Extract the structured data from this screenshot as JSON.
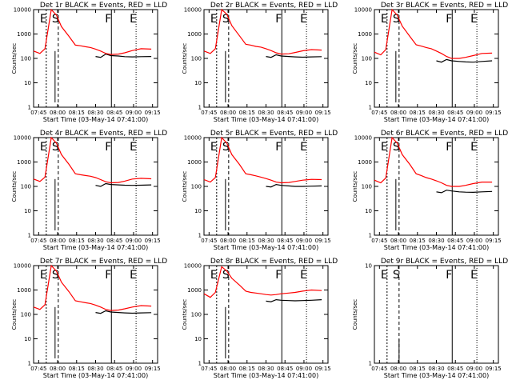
{
  "chart_data": [
    {
      "type": "line",
      "title": "Det 1r BLACK = Events, RED = LLD",
      "ylabel": "Counts/sec",
      "xlabel": "Start Time (03-May-14 07:41:00)",
      "x_ticks": [
        "07:45",
        "08:00",
        "08:15",
        "08:30",
        "08:45",
        "09:00",
        "09:15"
      ],
      "y_ticks": [
        "1",
        "10",
        "100",
        "1000",
        "10000"
      ],
      "yscale": "log",
      "ylim": [
        1,
        10000
      ],
      "markers": [
        "E",
        "S",
        "F",
        "E"
      ],
      "x": [
        0,
        5,
        9,
        14,
        18,
        22,
        28,
        33,
        37,
        41,
        45,
        49,
        53,
        57,
        61,
        67,
        72,
        78,
        85,
        93
      ],
      "series": [
        {
          "color": "#000000",
          "values": [
            null,
            null,
            null,
            null,
            null,
            null,
            null,
            null,
            null,
            null,
            null,
            120,
            110,
            150,
            130,
            125,
            118,
            115,
            118,
            120
          ]
        },
        {
          "color": "#ff0000",
          "values": [
            200,
            160,
            250,
            10000,
            6000,
            2000,
            800,
            350,
            330,
            300,
            280,
            240,
            200,
            160,
            145,
            150,
            170,
            210,
            250,
            240
          ]
        }
      ]
    },
    {
      "type": "line",
      "title": "Det 2r BLACK = Events, RED = LLD",
      "ylabel": "Counts/sec",
      "xlabel": "Start Time (03-May-14 07:41:00)",
      "x_ticks": [
        "07:45",
        "08:00",
        "08:15",
        "08:30",
        "08:45",
        "09:00",
        "09:15"
      ],
      "y_ticks": [
        "1",
        "10",
        "100",
        "1000",
        "10000"
      ],
      "yscale": "log",
      "ylim": [
        1,
        10000
      ],
      "markers": [
        "E",
        "S",
        "F",
        "E"
      ],
      "x": [
        0,
        5,
        9,
        14,
        18,
        22,
        28,
        33,
        37,
        41,
        45,
        49,
        53,
        57,
        61,
        67,
        72,
        78,
        85,
        93
      ],
      "series": [
        {
          "color": "#000000",
          "values": [
            null,
            null,
            null,
            null,
            null,
            null,
            null,
            null,
            null,
            null,
            null,
            120,
            110,
            140,
            125,
            120,
            115,
            112,
            115,
            118
          ]
        },
        {
          "color": "#ff0000",
          "values": [
            200,
            160,
            250,
            11000,
            6500,
            2200,
            850,
            380,
            350,
            310,
            290,
            250,
            210,
            170,
            150,
            155,
            175,
            205,
            230,
            220
          ]
        }
      ]
    },
    {
      "type": "line",
      "title": "Det 3r BLACK = Events, RED = LLD",
      "ylabel": "Counts/sec",
      "xlabel": "Start Time (03-May-14 07:41:00)",
      "x_ticks": [
        "07:45",
        "08:00",
        "08:15",
        "08:30",
        "08:45",
        "09:00",
        "09:15"
      ],
      "y_ticks": [
        "1",
        "10",
        "100",
        "1000",
        "10000"
      ],
      "yscale": "log",
      "ylim": [
        1,
        10000
      ],
      "markers": [
        "E",
        "S",
        "F",
        "E"
      ],
      "x": [
        0,
        5,
        9,
        14,
        18,
        22,
        28,
        33,
        37,
        41,
        45,
        49,
        53,
        57,
        61,
        67,
        72,
        78,
        85,
        93
      ],
      "series": [
        {
          "color": "#000000",
          "values": [
            null,
            null,
            null,
            null,
            null,
            null,
            null,
            null,
            null,
            null,
            null,
            80,
            70,
            90,
            80,
            75,
            72,
            70,
            75,
            80
          ]
        },
        {
          "color": "#ff0000",
          "values": [
            180,
            140,
            230,
            11000,
            6000,
            2100,
            800,
            360,
            320,
            280,
            250,
            200,
            160,
            120,
            100,
            100,
            110,
            130,
            160,
            165
          ]
        }
      ]
    },
    {
      "type": "line",
      "title": "Det 4r BLACK = Events, RED = LLD",
      "ylabel": "Counts/sec",
      "xlabel": "Start Time (03-May-14 07:41:00)",
      "x_ticks": [
        "07:45",
        "08:00",
        "08:15",
        "08:30",
        "08:45",
        "09:00",
        "09:15"
      ],
      "y_ticks": [
        "1",
        "10",
        "100",
        "1000",
        "10000"
      ],
      "yscale": "log",
      "ylim": [
        1,
        10000
      ],
      "markers": [
        "E",
        "S",
        "F",
        "E"
      ],
      "x": [
        0,
        5,
        9,
        14,
        18,
        22,
        28,
        33,
        37,
        41,
        45,
        49,
        53,
        57,
        61,
        67,
        72,
        78,
        85,
        93
      ],
      "series": [
        {
          "color": "#000000",
          "values": [
            null,
            null,
            null,
            null,
            null,
            null,
            null,
            null,
            null,
            null,
            null,
            110,
            100,
            130,
            120,
            115,
            112,
            110,
            112,
            115
          ]
        },
        {
          "color": "#ff0000",
          "values": [
            200,
            160,
            240,
            10500,
            6000,
            2000,
            800,
            330,
            300,
            280,
            260,
            230,
            190,
            155,
            140,
            145,
            165,
            200,
            215,
            205
          ]
        }
      ]
    },
    {
      "type": "line",
      "title": "Det 5r BLACK = Events, RED = LLD",
      "ylabel": "Counts/sec",
      "xlabel": "Start Time (03-May-14 07:41:00)",
      "x_ticks": [
        "07:45",
        "08:00",
        "08:15",
        "08:30",
        "08:45",
        "09:00",
        "09:15"
      ],
      "y_ticks": [
        "1",
        "10",
        "100",
        "1000",
        "10000"
      ],
      "yscale": "log",
      "ylim": [
        1,
        10000
      ],
      "markers": [
        "E",
        "S",
        "F",
        "E"
      ],
      "x": [
        0,
        5,
        9,
        14,
        18,
        22,
        28,
        33,
        37,
        41,
        45,
        49,
        53,
        57,
        61,
        67,
        72,
        78,
        85,
        93
      ],
      "series": [
        {
          "color": "#000000",
          "values": [
            null,
            null,
            null,
            null,
            null,
            null,
            null,
            null,
            null,
            null,
            null,
            100,
            95,
            120,
            110,
            105,
            100,
            100,
            102,
            105
          ]
        },
        {
          "color": "#ff0000",
          "values": [
            190,
            150,
            230,
            10500,
            6000,
            2000,
            800,
            330,
            300,
            270,
            240,
            210,
            180,
            150,
            140,
            145,
            160,
            180,
            195,
            190
          ]
        }
      ]
    },
    {
      "type": "line",
      "title": "Det 6r BLACK = Events, RED = LLD",
      "ylabel": "Counts/sec",
      "xlabel": "Start Time (03-May-14 07:41:00)",
      "x_ticks": [
        "07:45",
        "08:00",
        "08:15",
        "08:30",
        "08:45",
        "09:00",
        "09:15"
      ],
      "y_ticks": [
        "1",
        "10",
        "100",
        "1000",
        "10000"
      ],
      "yscale": "log",
      "ylim": [
        1,
        10000
      ],
      "markers": [
        "E",
        "S",
        "F",
        "E"
      ],
      "x": [
        0,
        5,
        9,
        14,
        18,
        22,
        28,
        33,
        37,
        41,
        45,
        49,
        53,
        57,
        61,
        67,
        72,
        78,
        85,
        93
      ],
      "series": [
        {
          "color": "#000000",
          "values": [
            null,
            null,
            null,
            null,
            null,
            null,
            null,
            null,
            null,
            null,
            null,
            60,
            55,
            70,
            65,
            60,
            58,
            57,
            60,
            62
          ]
        },
        {
          "color": "#ff0000",
          "values": [
            180,
            140,
            220,
            11000,
            6000,
            2000,
            800,
            330,
            280,
            230,
            200,
            170,
            140,
            110,
            100,
            100,
            110,
            130,
            150,
            150
          ]
        }
      ]
    },
    {
      "type": "line",
      "title": "Det 7r BLACK = Events, RED = LLD",
      "ylabel": "Counts/sec",
      "xlabel": "Start Time (03-May-14 07:41:00)",
      "x_ticks": [
        "07:45",
        "08:00",
        "08:15",
        "08:30",
        "08:45",
        "09:00",
        "09:15"
      ],
      "y_ticks": [
        "1",
        "10",
        "100",
        "1000",
        "10000"
      ],
      "yscale": "log",
      "ylim": [
        1,
        10000
      ],
      "markers": [
        "E",
        "S",
        "F",
        "E"
      ],
      "x": [
        0,
        5,
        9,
        14,
        18,
        22,
        28,
        33,
        37,
        41,
        45,
        49,
        53,
        57,
        61,
        67,
        72,
        78,
        85,
        93
      ],
      "series": [
        {
          "color": "#000000",
          "values": [
            null,
            null,
            null,
            null,
            null,
            null,
            null,
            null,
            null,
            null,
            null,
            120,
            110,
            140,
            125,
            120,
            115,
            112,
            115,
            118
          ]
        },
        {
          "color": "#ff0000",
          "values": [
            200,
            160,
            250,
            10500,
            6000,
            2100,
            850,
            360,
            330,
            300,
            280,
            240,
            200,
            160,
            145,
            150,
            170,
            200,
            230,
            220
          ]
        }
      ]
    },
    {
      "type": "line",
      "title": "Det 8r BLACK = Events, RED = LLD",
      "ylabel": "Counts/sec",
      "xlabel": "Start Time (03-May-14 07:41:00)",
      "x_ticks": [
        "07:45",
        "08:00",
        "08:15",
        "08:30",
        "08:45",
        "09:00",
        "09:15"
      ],
      "y_ticks": [
        "1",
        "10",
        "100",
        "1000",
        "10000"
      ],
      "yscale": "log",
      "ylim": [
        1,
        10000
      ],
      "markers": [
        "E",
        "S",
        "F",
        "E"
      ],
      "x": [
        0,
        5,
        9,
        14,
        18,
        22,
        28,
        33,
        37,
        41,
        45,
        49,
        53,
        57,
        61,
        67,
        72,
        78,
        85,
        93
      ],
      "series": [
        {
          "color": "#000000",
          "values": [
            null,
            null,
            null,
            null,
            null,
            null,
            null,
            null,
            null,
            null,
            null,
            350,
            330,
            400,
            380,
            370,
            360,
            370,
            380,
            400
          ]
        },
        {
          "color": "#ff0000",
          "values": [
            700,
            500,
            800,
            9000,
            6000,
            3000,
            1600,
            900,
            800,
            750,
            700,
            650,
            620,
            650,
            700,
            750,
            800,
            900,
            1000,
            950
          ]
        }
      ]
    },
    {
      "type": "line",
      "title": "Det 9r BLACK = Events, RED = LLD",
      "ylabel": "Counts/sec",
      "xlabel": "Start Time (03-May-14 07:41:00)",
      "x_ticks": [
        "07:45",
        "08:00",
        "08:15",
        "08:30",
        "08:45",
        "09:00",
        "09:15"
      ],
      "y_ticks": [
        "1",
        "10"
      ],
      "yscale": "log",
      "ylim": [
        1,
        10
      ],
      "markers": [
        "E",
        "S",
        "F",
        "E"
      ],
      "x": [],
      "series": []
    }
  ]
}
